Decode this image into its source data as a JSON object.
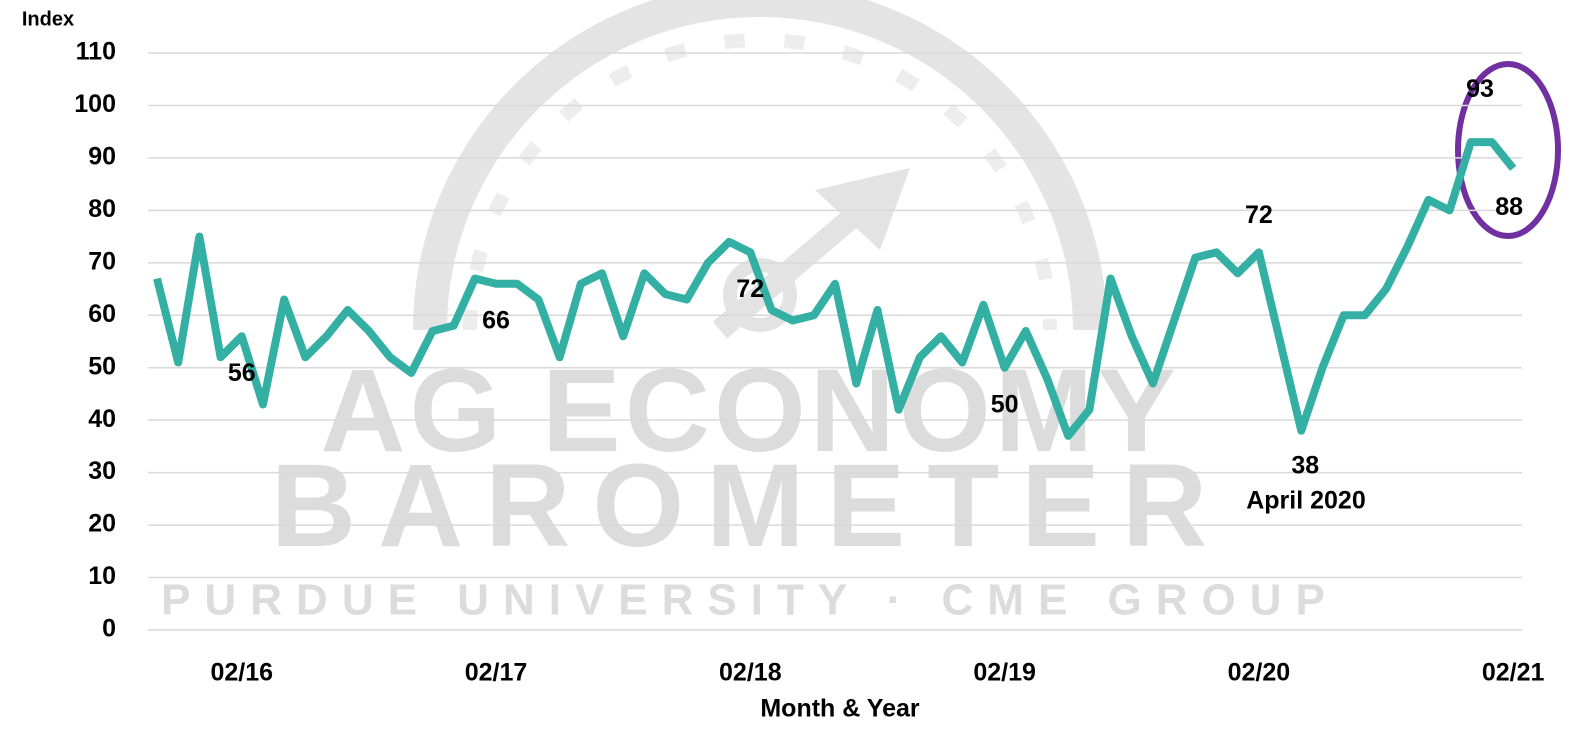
{
  "chart_data": {
    "type": "line",
    "y_axis_label": "Index",
    "x_axis_label": "Month & Year",
    "watermark": [
      "AG ECONOMY",
      "BAROMETER",
      "PURDUE UNIVERSITY  ·  CME GROUP"
    ],
    "categories": [
      null,
      null,
      null,
      null,
      "02/16",
      null,
      null,
      null,
      null,
      null,
      null,
      null,
      null,
      null,
      null,
      null,
      "02/17",
      null,
      null,
      null,
      null,
      null,
      null,
      null,
      null,
      null,
      null,
      null,
      "02/18",
      null,
      null,
      null,
      null,
      null,
      null,
      null,
      null,
      null,
      null,
      null,
      "02/19",
      null,
      null,
      null,
      null,
      null,
      null,
      null,
      null,
      null,
      null,
      null,
      "02/20",
      null,
      null,
      null,
      null,
      null,
      null,
      null,
      null,
      null,
      null,
      null,
      "02/21"
    ],
    "series": [
      {
        "color": "#33b0a3",
        "values": [
          67,
          51,
          75,
          52,
          56,
          43,
          63,
          52,
          56,
          61,
          57,
          52,
          49,
          57,
          58,
          67,
          66,
          66,
          63,
          52,
          66,
          68,
          56,
          68,
          64,
          63,
          70,
          74,
          72,
          61,
          59,
          60,
          66,
          47,
          61,
          42,
          52,
          56,
          51,
          62,
          50,
          57,
          48,
          37,
          42,
          67,
          56,
          47,
          59,
          71,
          72,
          68,
          72,
          55,
          38,
          50,
          60,
          60,
          65,
          73,
          82,
          80,
          93,
          93,
          88
        ],
        "value_labels": [
          null,
          null,
          null,
          null,
          "56",
          null,
          null,
          null,
          null,
          null,
          null,
          null,
          null,
          null,
          null,
          null,
          "66",
          null,
          null,
          null,
          null,
          null,
          null,
          null,
          null,
          null,
          null,
          null,
          "72",
          null,
          null,
          null,
          null,
          null,
          null,
          null,
          null,
          null,
          null,
          null,
          "50",
          null,
          null,
          null,
          null,
          null,
          null,
          null,
          null,
          null,
          null,
          null,
          "72",
          null,
          "38",
          null,
          null,
          null,
          null,
          null,
          null,
          null,
          null,
          "93",
          "88"
        ]
      }
    ],
    "annotations": [
      "April 2020"
    ],
    "ylim": [
      0,
      110
    ],
    "yticks": [
      0,
      10,
      20,
      30,
      40,
      50,
      60,
      70,
      80,
      90,
      100,
      110
    ],
    "grid": true
  }
}
